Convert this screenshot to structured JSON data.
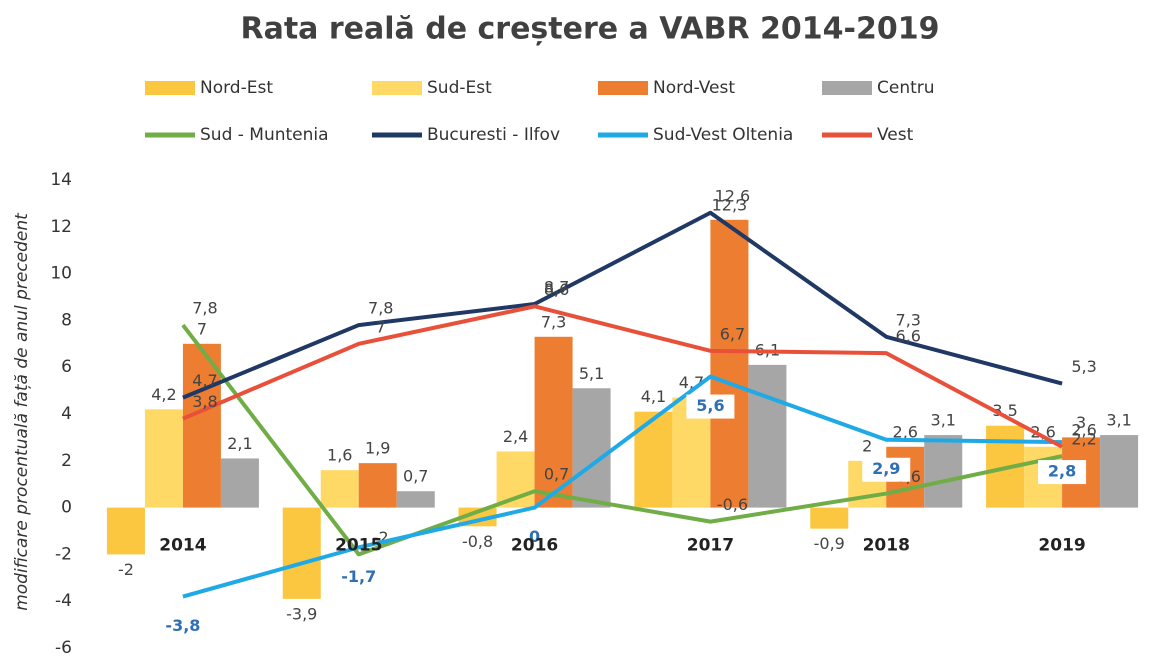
{
  "chart_data": {
    "type": "bar",
    "title": "Rata reală de creștere a VABR 2014-2019",
    "y_label": "modificare procentuală față de anul precedent",
    "categories": [
      "2014",
      "2015",
      "2016",
      "2017",
      "2018",
      "2019"
    ],
    "ylim": [
      -6,
      14
    ],
    "yticks": [
      -6,
      -4,
      -2,
      0,
      2,
      4,
      6,
      8,
      10,
      12,
      14
    ],
    "grid": false,
    "series": [
      {
        "name": "Nord-Est",
        "type": "bar",
        "color": "#fbc640",
        "values": [
          -2,
          -3.9,
          -0.8,
          4.1,
          -0.9,
          3.5
        ],
        "value_labels": [
          "-2",
          "-3,9",
          "-0,8",
          "4,1",
          "-0,9",
          "3,5"
        ]
      },
      {
        "name": "Sud-Est",
        "type": "bar",
        "color": "#ffd966",
        "values": [
          4.2,
          1.6,
          2.4,
          4.7,
          2.0,
          2.6
        ],
        "value_labels": [
          "4,2",
          "1,6",
          "2,4",
          "4,7",
          "2",
          "2,6"
        ]
      },
      {
        "name": "Nord-Vest",
        "type": "bar",
        "color": "#ed7d31",
        "values": [
          7,
          1.9,
          7.3,
          12.3,
          2.6,
          3
        ],
        "value_labels": [
          "7",
          "1,9",
          "7,3",
          "12,3",
          "2,6",
          "3"
        ]
      },
      {
        "name": "Centru",
        "type": "bar",
        "color": "#a6a6a6",
        "values": [
          2.1,
          0.7,
          5.1,
          6.1,
          3.1,
          3.1
        ],
        "value_labels": [
          "2,1",
          "0,7",
          "5,1",
          "6,1",
          "3,1",
          "3,1"
        ]
      },
      {
        "name": "Sud - Muntenia",
        "type": "line",
        "color": "#70ad47",
        "values": [
          7.8,
          -2,
          0.7,
          -0.6,
          0.6,
          2.2
        ],
        "value_labels": [
          "7,8",
          "-2",
          "0,7",
          "-0,6",
          "0,6",
          "2,2"
        ]
      },
      {
        "name": "Bucuresti - Ilfov",
        "type": "line",
        "color": "#203864",
        "values": [
          4.7,
          7.8,
          8.7,
          12.6,
          7.3,
          5.3
        ],
        "value_labels": [
          "4,7",
          "7,8",
          "8,7",
          "12,6",
          "7,3",
          "5,3"
        ]
      },
      {
        "name": "Sud-Vest Oltenia",
        "type": "line",
        "color": "#1fa9e6",
        "values": [
          -3.8,
          -1.7,
          0,
          5.6,
          2.9,
          2.8
        ],
        "value_labels": [
          "-3,8",
          "-1,7",
          "0",
          "5,6",
          "2,9",
          "2,8"
        ]
      },
      {
        "name": "Vest",
        "type": "line",
        "color": "#e8503a",
        "values": [
          3.8,
          7,
          8.6,
          6.7,
          6.6,
          2.6
        ],
        "value_labels": [
          "3,8",
          "7",
          "8,6",
          "6,7",
          "6,6",
          "2,6"
        ]
      }
    ]
  }
}
